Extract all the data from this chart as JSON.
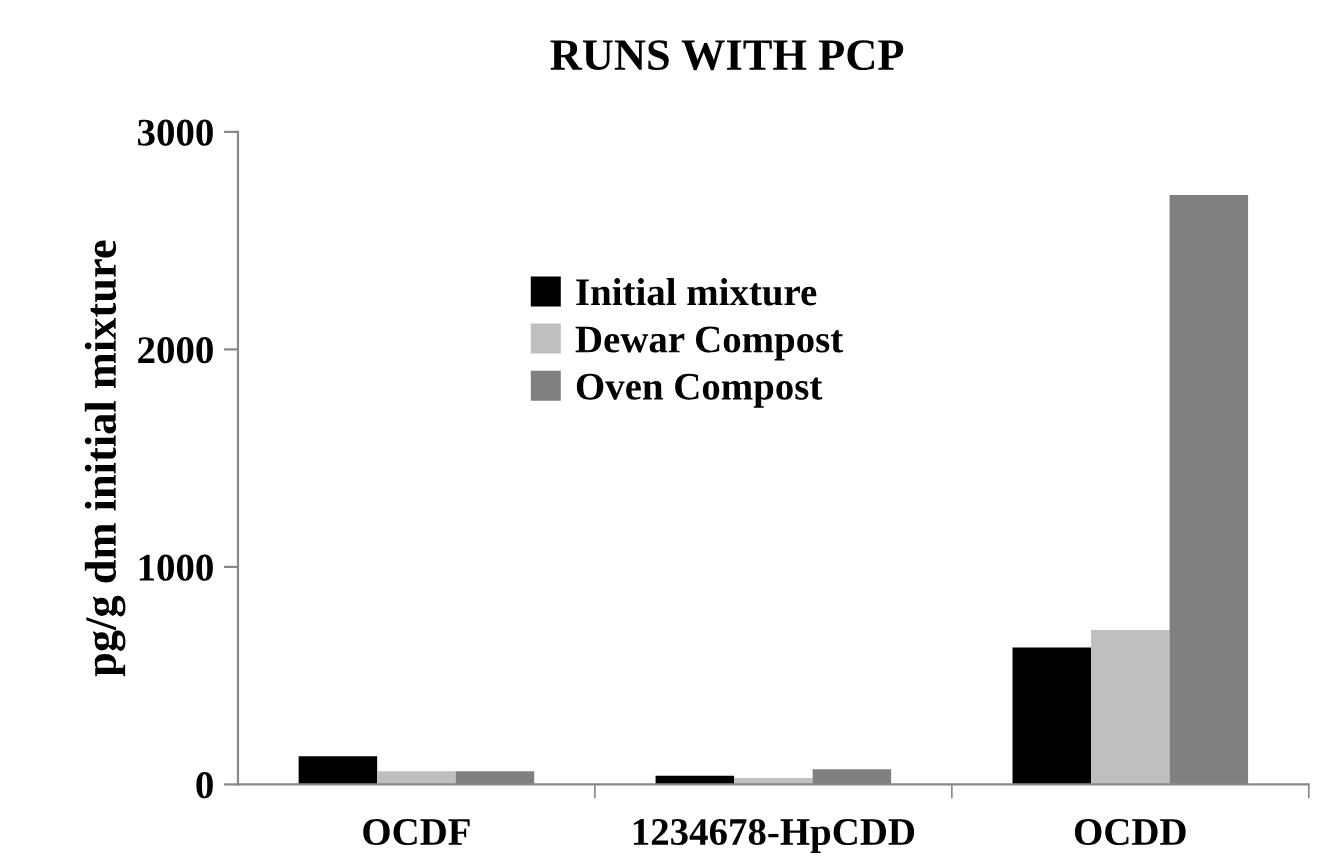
{
  "chart_data": {
    "type": "bar",
    "title": "RUNS WITH PCP",
    "ylabel": "pg/g dm initial mixture",
    "categories": [
      "OCDF",
      "1234678-HpCDD",
      "OCDD"
    ],
    "series": [
      {
        "name": "Initial mixture",
        "color": "#000000",
        "values": [
          130,
          40,
          630
        ]
      },
      {
        "name": "Dewar Compost",
        "color": "#bfbfbf",
        "values": [
          60,
          30,
          710
        ]
      },
      {
        "name": "Oven Compost",
        "color": "#808080",
        "values": [
          60,
          70,
          2710
        ]
      }
    ],
    "ylim": [
      0,
      3000
    ],
    "yticks": [
      0,
      1000,
      2000,
      3000
    ],
    "grid": false,
    "legend": "top"
  }
}
